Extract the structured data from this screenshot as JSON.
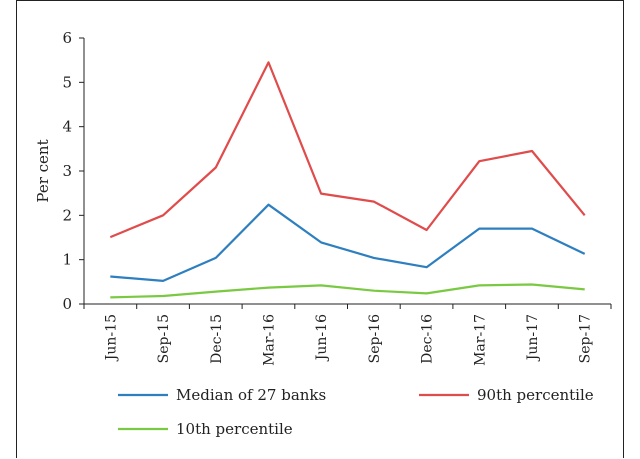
{
  "chart_data": {
    "type": "line",
    "title": "",
    "xlabel": "",
    "ylabel": "Per cent",
    "ylim": [
      0,
      6
    ],
    "yticks": [
      "0",
      "1",
      "2",
      "3",
      "4",
      "5",
      "6"
    ],
    "categories": [
      "Jun-15",
      "Sep-15",
      "Dec-15",
      "Mar-16",
      "Jun-16",
      "Sep-16",
      "Dec-16",
      "Mar-17",
      "Jun-17",
      "Sep-17"
    ],
    "grid": false,
    "legend_position": "bottom",
    "series": [
      {
        "name": "Median of 27 banks",
        "color": "#2e7fc0",
        "values": [
          0.62,
          0.52,
          1.04,
          2.24,
          1.39,
          1.04,
          0.83,
          1.7,
          1.7,
          1.13
        ]
      },
      {
        "name": "90th percentile",
        "color": "#e04b4b",
        "values": [
          1.51,
          2.0,
          3.08,
          5.45,
          2.49,
          2.31,
          1.67,
          3.22,
          3.45,
          2.0
        ]
      },
      {
        "name": "10th percentile",
        "color": "#7ac943",
        "values": [
          0.15,
          0.18,
          0.28,
          0.37,
          0.42,
          0.3,
          0.24,
          0.42,
          0.44,
          0.33
        ]
      }
    ]
  }
}
